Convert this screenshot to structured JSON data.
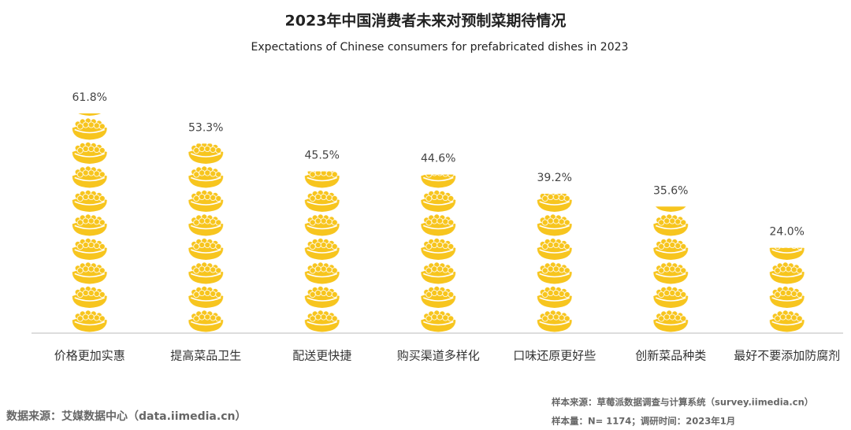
{
  "chart_data": {
    "type": "bar",
    "title": "2023年中国消费者未来对预制菜期待情况",
    "subtitle": "Expectations of Chinese consumers for prefabricated dishes in 2023",
    "categories": [
      "价格更加实惠",
      "提高菜品卫生",
      "配送更快捷",
      "购买渠道多样化",
      "口味还原更好些",
      "创新菜品种类",
      "最好不要添加防腐剂"
    ],
    "values": [
      61.8,
      53.3,
      45.5,
      44.6,
      39.2,
      35.6,
      24.0
    ],
    "value_labels": [
      "61.8%",
      "53.3%",
      "45.5%",
      "44.6%",
      "39.2%",
      "35.6%",
      "24.0%"
    ],
    "color": "#f7c51e",
    "source": "数据来源：艾媒数据中心（data.iimedia.cn）",
    "notes": [
      "样本来源：草莓派数据调查与计算系统（survey.iimedia.cn）",
      "样本量：N= 1174；调研时间：2023年1月"
    ]
  }
}
